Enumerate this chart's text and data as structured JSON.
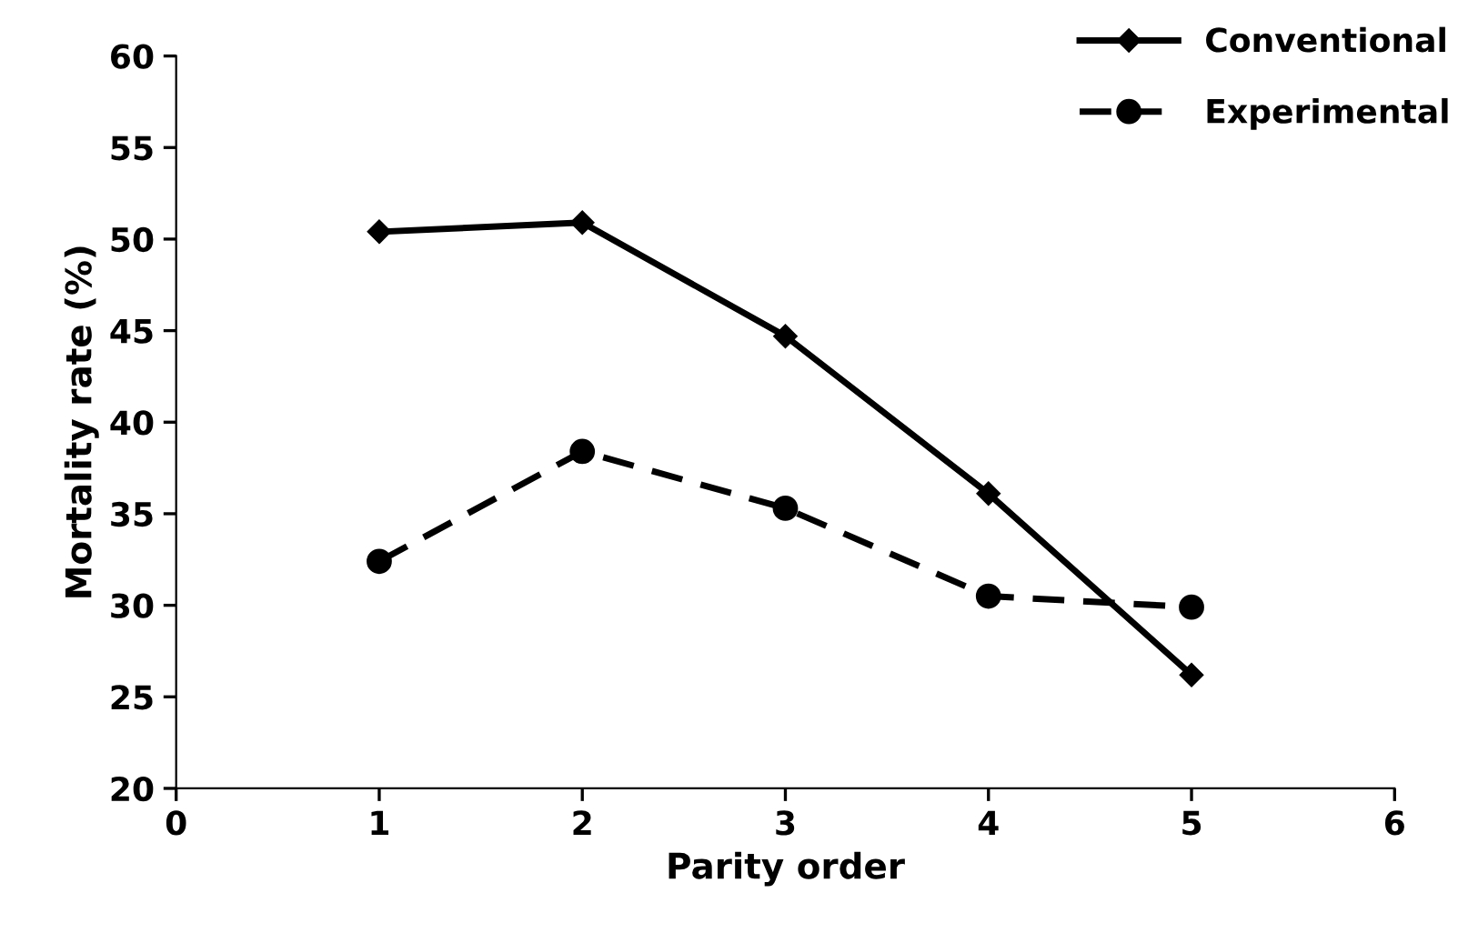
{
  "chart_data": {
    "type": "line",
    "xlabel": "Parity order",
    "ylabel": "Mortality rate (%)",
    "x": [
      1,
      2,
      3,
      4,
      5
    ],
    "series": [
      {
        "name": "Conventional",
        "color": "#000000",
        "values": [
          50.4,
          50.9,
          44.7,
          36.1,
          26.2
        ],
        "marker": "diamond",
        "line_style": "solid"
      },
      {
        "name": "Experimental",
        "color": "#000000",
        "values": [
          32.4,
          38.4,
          35.3,
          30.5,
          29.9
        ],
        "marker": "circle",
        "line_style": "dashed"
      }
    ],
    "xlim": [
      0,
      6
    ],
    "xticks": [
      0,
      1,
      2,
      3,
      4,
      5,
      6
    ],
    "ylim": [
      20,
      60
    ],
    "yticks": [
      20,
      25,
      30,
      35,
      40,
      45,
      50,
      55,
      60
    ],
    "grid": false,
    "legend": "top right"
  }
}
